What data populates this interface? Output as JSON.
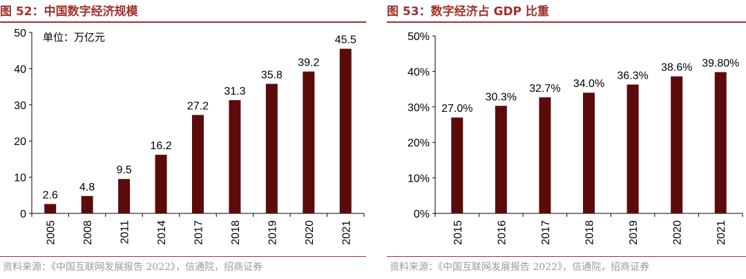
{
  "figures": [
    {
      "title": "图 52：中国数字经济规模",
      "unit_note": "单位：万亿元",
      "source": "资料来源：《中国互联网发展报告 2022》，信通院，招商证券"
    },
    {
      "title": "图 53：数字经济占 GDP 比重",
      "source": "资料来源：《中国互联网发展报告 2022》，信通院，招商证券"
    }
  ],
  "colors": {
    "bar": "#5c0b0b",
    "title": "#a0302b",
    "source": "#9a9a9a"
  },
  "chart_data": [
    {
      "type": "bar",
      "title": "",
      "xlabel": "",
      "ylabel": "",
      "categories": [
        "2005",
        "2008",
        "2011",
        "2014",
        "2017",
        "2018",
        "2019",
        "2020",
        "2021"
      ],
      "values": [
        2.6,
        4.8,
        9.5,
        16.2,
        27.2,
        31.3,
        35.8,
        39.2,
        45.5
      ],
      "data_labels": [
        "2.6",
        "4.8",
        "9.5",
        "16.2",
        "27.2",
        "31.3",
        "35.8",
        "39.2",
        "45.5"
      ],
      "ylim": [
        0,
        50
      ],
      "yticks": [
        0,
        10,
        20,
        30,
        40,
        50
      ],
      "ytick_labels": [
        "0",
        "10",
        "20",
        "30",
        "40",
        "50"
      ],
      "grid": false,
      "legend": "none"
    },
    {
      "type": "bar",
      "title": "",
      "xlabel": "",
      "ylabel": "",
      "categories": [
        "2015",
        "2016",
        "2017",
        "2018",
        "2019",
        "2020",
        "2021"
      ],
      "values": [
        27.0,
        30.3,
        32.7,
        34.0,
        36.3,
        38.6,
        39.8
      ],
      "data_labels": [
        "27.0%",
        "30.3%",
        "32.7%",
        "34.0%",
        "36.3%",
        "38.6%",
        "39.80%"
      ],
      "ylim": [
        0,
        50
      ],
      "yticks": [
        0,
        10,
        20,
        30,
        40,
        50
      ],
      "ytick_labels": [
        "0%",
        "10%",
        "20%",
        "30%",
        "40%",
        "50%"
      ],
      "grid": false,
      "legend": "none"
    }
  ]
}
